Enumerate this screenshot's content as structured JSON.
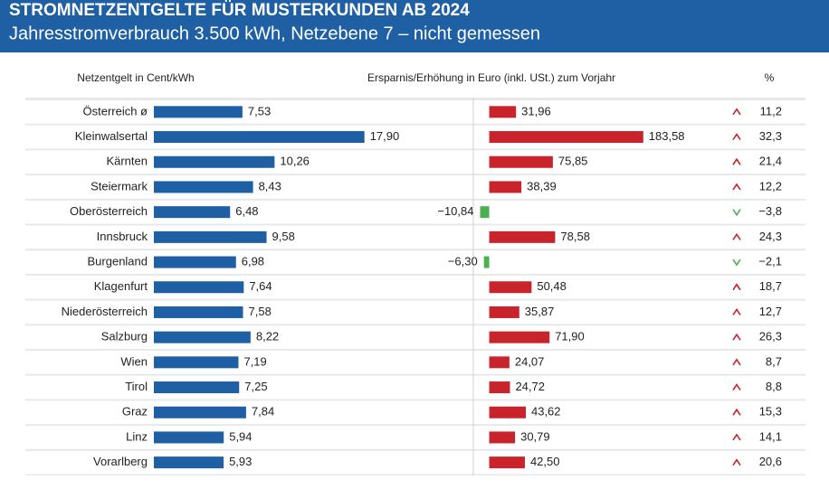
{
  "header": {
    "title": "STROMNETZENTGELTE FÜR MUSTERKUNDEN AB 2024",
    "subtitle": "Jahresstromverbrauch 3.500 kWh, Netzebene 7 – nicht gemessen"
  },
  "chart_data": [
    {
      "type": "bar",
      "orientation": "horizontal",
      "title": "Netzentgelt in Cent/kWh",
      "categories": [
        "Österreich ø",
        "Kleinwalsertal",
        "Kärnten",
        "Steiermark",
        "Oberösterreich",
        "Innsbruck",
        "Burgenland",
        "Klagenfurt",
        "Niederösterreich",
        "Salzburg",
        "Wien",
        "Tirol",
        "Graz",
        "Linz",
        "Vorarlberg"
      ],
      "values": [
        7.53,
        17.9,
        10.26,
        8.43,
        6.48,
        9.58,
        6.98,
        7.64,
        7.58,
        8.22,
        7.19,
        7.25,
        7.84,
        5.94,
        5.93
      ],
      "value_labels": [
        "7,53",
        "17,90",
        "10,26",
        "8,43",
        "6,48",
        "9,58",
        "6,98",
        "7,64",
        "7,58",
        "8,22",
        "7,19",
        "7,25",
        "7,84",
        "5,94",
        "5,93"
      ],
      "color": "#1f5fa3",
      "xlim": [
        0,
        20
      ]
    },
    {
      "type": "bar",
      "orientation": "horizontal",
      "title": "Ersparnis/Erhöhung in Euro (inkl. USt.) zum Vorjahr",
      "values": [
        31.96,
        183.58,
        75.85,
        38.39,
        -10.84,
        78.58,
        -6.3,
        50.48,
        35.87,
        71.9,
        24.07,
        24.72,
        43.62,
        30.79,
        42.5
      ],
      "value_labels": [
        "31,96",
        "183,58",
        "75,85",
        "38,39",
        "−10,84",
        "78,58",
        "−6,30",
        "50,48",
        "35,87",
        "71,90",
        "24,07",
        "24,72",
        "43,62",
        "30,79",
        "42,50"
      ],
      "color": "#c9232b",
      "negative_color": "#4caf50",
      "xlim": [
        -20,
        200
      ]
    }
  ],
  "percent": {
    "header": "%",
    "values": [
      11.2,
      32.3,
      21.4,
      12.2,
      -3.8,
      24.3,
      -2.1,
      18.7,
      12.7,
      26.3,
      8.7,
      8.8,
      15.3,
      14.1,
      20.6
    ],
    "value_labels": [
      "11,2",
      "32,3",
      "21,4",
      "12,2",
      "−3,8",
      "24,3",
      "−2,1",
      "18,7",
      "12,7",
      "26,3",
      "8,7",
      "8,8",
      "15,3",
      "14,1",
      "20,6"
    ],
    "up_color": "#c9232b",
    "down_color": "#4caf50"
  }
}
